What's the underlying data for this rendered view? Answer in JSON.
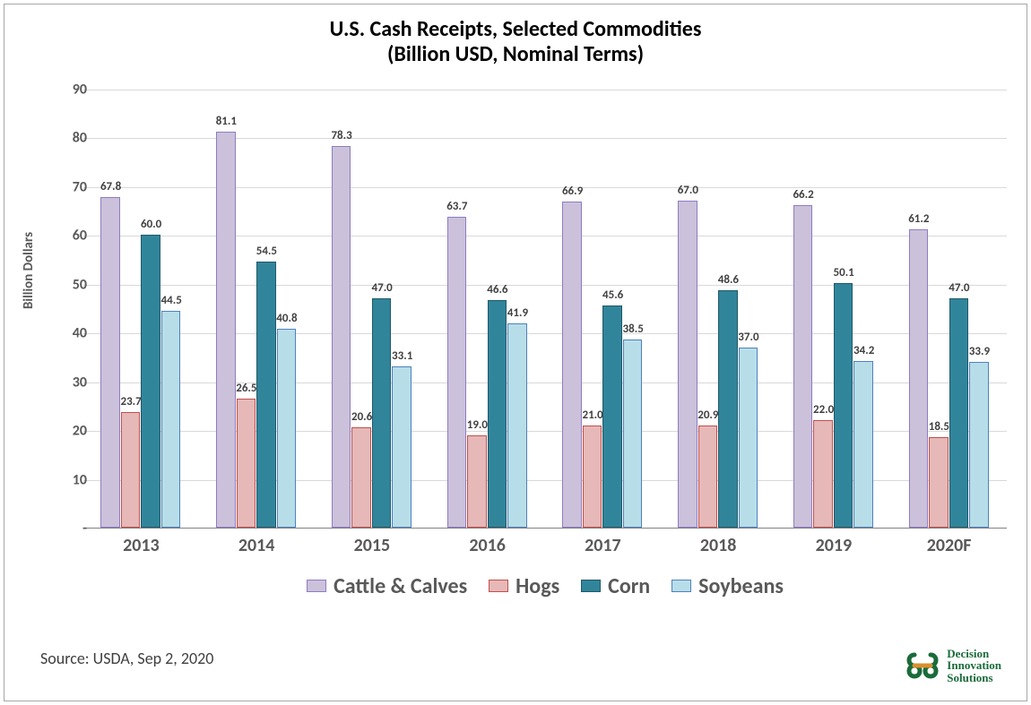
{
  "chart": {
    "type": "bar",
    "title_line1": "U.S. Cash Receipts, Selected Commodities",
    "title_line2": "(Billion USD, Nominal Terms)",
    "title_fontsize": 24,
    "ylabel": "Billion Dollars",
    "label_fontsize": 15,
    "ylim": [
      0,
      90
    ],
    "ytick_step": 10,
    "ytick_labels": [
      "-",
      "10",
      "20",
      "30",
      "40",
      "50",
      "60",
      "70",
      "80",
      "90"
    ],
    "grid_color": "#d9d9d9",
    "axis_color": "#808080",
    "background_color": "#ffffff",
    "border_color": "#a6a6a6",
    "categories": [
      "2013",
      "2014",
      "2015",
      "2016",
      "2017",
      "2018",
      "2019",
      "2020F"
    ],
    "series": [
      {
        "name": "Cattle & Calves",
        "fill": "#ccc1da",
        "border": "#8e7cc3",
        "values": [
          67.8,
          81.1,
          78.3,
          63.7,
          66.9,
          67.0,
          66.2,
          61.2
        ]
      },
      {
        "name": "Hogs",
        "fill": "#e6b8b7",
        "border": "#c0504d",
        "values": [
          23.7,
          26.5,
          20.6,
          19.0,
          21.0,
          20.9,
          22.0,
          18.5
        ]
      },
      {
        "name": "Corn",
        "fill": "#31859b",
        "border": "#215967",
        "values": [
          60.0,
          54.5,
          47.0,
          46.6,
          45.6,
          48.6,
          50.1,
          47.0
        ]
      },
      {
        "name": "Soybeans",
        "fill": "#b7dee8",
        "border": "#4f81bd",
        "values": [
          44.5,
          40.8,
          33.1,
          41.9,
          38.5,
          37.0,
          34.2,
          33.9
        ]
      }
    ],
    "bar_label_fontsize": 13,
    "xtick_fontsize": 20,
    "legend_fontsize": 24,
    "source": "Source: USDA, Sep 2, 2020",
    "source_fontsize": 18,
    "logo_text1": "Decision",
    "logo_text2": "Innovation",
    "logo_text3": "Solutions",
    "logo_color": "#1a6b3a",
    "logo_accent": "#d98f2e"
  }
}
